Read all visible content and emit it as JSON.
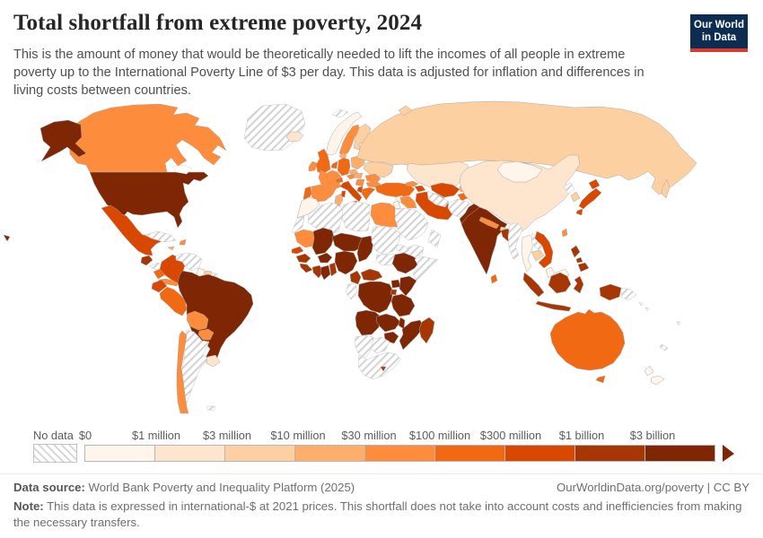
{
  "header": {
    "title": "Total shortfall from extreme poverty, 2024",
    "subtitle": "This is the amount of money that would be theoretically needed to lift the incomes of all people in extreme poverty up to the International Poverty Line of $3 per day. This data is adjusted for inflation and differences in living costs between countries.",
    "logo_line1": "Our World",
    "logo_line2": "in Data",
    "logo_bg": "#0d2c51",
    "logo_accent": "#dd392d"
  },
  "legend": {
    "no_data_label": "No data",
    "tick_labels": [
      "$0",
      "$1 million",
      "$3 million",
      "$10 million",
      "$30 million",
      "$100 million",
      "$300 million",
      "$1 billion",
      "$3 billion"
    ]
  },
  "footer": {
    "source_label": "Data source:",
    "source_text": " World Bank Poverty and Inequality Platform (2025)",
    "link_text": "OurWorldinData.org/poverty | CC BY",
    "note_label": "Note:",
    "note_text": " This data is expressed in international-$ at 2021 prices. This shortfall does not take into account costs and inefficiencies from making the necessary transfers."
  },
  "chart_data": {
    "type": "choropleth-map",
    "title": "Total shortfall from extreme poverty, 2024",
    "unit": "international-$ at 2021 prices",
    "bins": {
      "b1": {
        "range": "$0 – $1 million",
        "color": "#fff5eb"
      },
      "b2": {
        "range": "$1 – $3 million",
        "color": "#fee6ce"
      },
      "b3": {
        "range": "$3 – $10 million",
        "color": "#fdd0a2"
      },
      "b4": {
        "range": "$10 – $30 million",
        "color": "#fdae6b"
      },
      "b5": {
        "range": "$30 – $100 million",
        "color": "#fd8d3c"
      },
      "b6": {
        "range": "$100 – $300 million",
        "color": "#f16913"
      },
      "b7": {
        "range": "$300 million – $1 billion",
        "color": "#d94801"
      },
      "b8": {
        "range": "$1 – $3 billion",
        "color": "#a63603"
      },
      "b9": {
        "range": "$3 billion +",
        "color": "#7f2704"
      },
      "no_data": {
        "range": "No data",
        "color": "hatch"
      }
    },
    "countries": [
      {
        "id": "greenland",
        "name": "Greenland",
        "bin": "no_data"
      },
      {
        "id": "iceland",
        "name": "Iceland",
        "bin": "b2"
      },
      {
        "id": "canada",
        "name": "Canada",
        "bin": "b5"
      },
      {
        "id": "alaska",
        "name": "United States (Alaska)",
        "bin": "b9"
      },
      {
        "id": "usa",
        "name": "United States",
        "bin": "b9"
      },
      {
        "id": "hawaii",
        "name": "United States (Hawaii)",
        "bin": "b9"
      },
      {
        "id": "mexico",
        "name": "Mexico",
        "bin": "b7"
      },
      {
        "id": "guatemala",
        "name": "Guatemala",
        "bin": "b8"
      },
      {
        "id": "honduras",
        "name": "Honduras",
        "bin": "no_data"
      },
      {
        "id": "nicaragua",
        "name": "Nicaragua",
        "bin": "b6"
      },
      {
        "id": "costapanama",
        "name": "Costa Rica / Panama",
        "bin": "b5"
      },
      {
        "id": "cuba",
        "name": "Cuba",
        "bin": "no_data"
      },
      {
        "id": "haiti",
        "name": "Haiti",
        "bin": "b5"
      },
      {
        "id": "jamaica",
        "name": "Jamaica",
        "bin": "b4"
      },
      {
        "id": "trinidad",
        "name": "Trinidad and Tobago",
        "bin": "b3"
      },
      {
        "id": "colombia",
        "name": "Colombia",
        "bin": "b7"
      },
      {
        "id": "venezuela",
        "name": "Venezuela",
        "bin": "no_data"
      },
      {
        "id": "guyana",
        "name": "Guyana",
        "bin": "b1"
      },
      {
        "id": "suriname",
        "name": "Suriname",
        "bin": "b3"
      },
      {
        "id": "frguiana",
        "name": "French Guiana",
        "bin": "no_data"
      },
      {
        "id": "ecuador",
        "name": "Ecuador",
        "bin": "b7"
      },
      {
        "id": "peru",
        "name": "Peru",
        "bin": "b6"
      },
      {
        "id": "brazil",
        "name": "Brazil",
        "bin": "b9"
      },
      {
        "id": "bolivia",
        "name": "Bolivia",
        "bin": "b5"
      },
      {
        "id": "paraguay",
        "name": "Paraguay",
        "bin": "b5"
      },
      {
        "id": "uruguay",
        "name": "Uruguay",
        "bin": "b2"
      },
      {
        "id": "argentina",
        "name": "Argentina",
        "bin": "no_data"
      },
      {
        "id": "chile",
        "name": "Chile",
        "bin": "b5"
      },
      {
        "id": "falkland",
        "name": "Falkland Islands",
        "bin": "no_data"
      },
      {
        "id": "svalbard",
        "name": "Svalbard",
        "bin": "no_data"
      },
      {
        "id": "norway",
        "name": "Norway",
        "bin": "b1"
      },
      {
        "id": "sweden",
        "name": "Sweden",
        "bin": "b5"
      },
      {
        "id": "finland",
        "name": "Finland",
        "bin": "b3"
      },
      {
        "id": "denmark",
        "name": "Denmark",
        "bin": "b4"
      },
      {
        "id": "uk",
        "name": "United Kingdom",
        "bin": "b6"
      },
      {
        "id": "ireland",
        "name": "Ireland",
        "bin": "b5"
      },
      {
        "id": "portugal",
        "name": "Portugal",
        "bin": "b6"
      },
      {
        "id": "spain",
        "name": "Spain",
        "bin": "b5"
      },
      {
        "id": "france",
        "name": "France",
        "bin": "b5"
      },
      {
        "id": "benelux",
        "name": "Belgium / Netherlands",
        "bin": "b6"
      },
      {
        "id": "germany",
        "name": "Germany",
        "bin": "b6"
      },
      {
        "id": "switzerland",
        "name": "Switzerland",
        "bin": "b6"
      },
      {
        "id": "italy",
        "name": "Italy",
        "bin": "b7"
      },
      {
        "id": "austria",
        "name": "Austria",
        "bin": "b5"
      },
      {
        "id": "czech",
        "name": "Czechia",
        "bin": "b4"
      },
      {
        "id": "poland",
        "name": "Poland",
        "bin": "b4"
      },
      {
        "id": "baltics",
        "name": "Baltic states",
        "bin": "b2"
      },
      {
        "id": "belarus",
        "name": "Belarus",
        "bin": "b1"
      },
      {
        "id": "ukraine",
        "name": "Ukraine",
        "bin": "b3"
      },
      {
        "id": "romania",
        "name": "Romania",
        "bin": "b5"
      },
      {
        "id": "hungary",
        "name": "Hungary",
        "bin": "b4"
      },
      {
        "id": "serbia",
        "name": "Serbia",
        "bin": "b5"
      },
      {
        "id": "albania",
        "name": "Albania",
        "bin": "b7"
      },
      {
        "id": "greece",
        "name": "Greece",
        "bin": "b6"
      },
      {
        "id": "bulgaria",
        "name": "Bulgaria",
        "bin": "b5"
      },
      {
        "id": "turkey",
        "name": "Turkey",
        "bin": "b6"
      },
      {
        "id": "georgia",
        "name": "Georgia",
        "bin": "b5"
      },
      {
        "id": "azerbaijan",
        "name": "Azerbaijan",
        "bin": "b7"
      },
      {
        "id": "syria",
        "name": "Syria",
        "bin": "b1"
      },
      {
        "id": "israeljordan",
        "name": "Israel / Jordan",
        "bin": "b1"
      },
      {
        "id": "iraq",
        "name": "Iraq",
        "bin": "b5"
      },
      {
        "id": "iran",
        "name": "Iran",
        "bin": "b7"
      },
      {
        "id": "saudi",
        "name": "Saudi Arabia",
        "bin": "no_data"
      },
      {
        "id": "yemen",
        "name": "Yemen",
        "bin": "no_data"
      },
      {
        "id": "oman",
        "name": "Oman",
        "bin": "no_data"
      },
      {
        "id": "kazakhstan",
        "name": "Kazakhstan",
        "bin": "b2"
      },
      {
        "id": "uzbekistan",
        "name": "Uzbekistan",
        "bin": "b7"
      },
      {
        "id": "turkmenistan",
        "name": "Turkmenistan",
        "bin": "no_data"
      },
      {
        "id": "kyrgyzstan",
        "name": "Kyrgyzstan",
        "bin": "b4"
      },
      {
        "id": "tajikistan",
        "name": "Tajikistan",
        "bin": "b6"
      },
      {
        "id": "afghanistan",
        "name": "Afghanistan",
        "bin": "no_data"
      },
      {
        "id": "pakistan",
        "name": "Pakistan",
        "bin": "b9"
      },
      {
        "id": "india",
        "name": "India",
        "bin": "b9"
      },
      {
        "id": "nepal",
        "name": "Nepal",
        "bin": "b5"
      },
      {
        "id": "bhutan",
        "name": "Bhutan",
        "bin": "b3"
      },
      {
        "id": "bangladesh",
        "name": "Bangladesh",
        "bin": "b8"
      },
      {
        "id": "srilanka",
        "name": "Sri Lanka",
        "bin": "b6"
      },
      {
        "id": "myanmar",
        "name": "Myanmar",
        "bin": "no_data"
      },
      {
        "id": "thailand",
        "name": "Thailand",
        "bin": "b1"
      },
      {
        "id": "laos",
        "name": "Laos",
        "bin": "no_data"
      },
      {
        "id": "cambodia",
        "name": "Cambodia",
        "bin": "b3"
      },
      {
        "id": "vietnam",
        "name": "Vietnam",
        "bin": "b7"
      },
      {
        "id": "malaysia",
        "name": "Malaysia",
        "bin": "b1"
      },
      {
        "id": "malaysiaborneo",
        "name": "Malaysia (Borneo)",
        "bin": "b1"
      },
      {
        "id": "china",
        "name": "China",
        "bin": "b2"
      },
      {
        "id": "mongolia",
        "name": "Mongolia",
        "bin": "b1"
      },
      {
        "id": "russia",
        "name": "Russia",
        "bin": "b3"
      },
      {
        "id": "sakhalin",
        "name": "Russia (Sakhalin)",
        "bin": "b3"
      },
      {
        "id": "novaya",
        "name": "Russia (Novaya Zemlya)",
        "bin": "b3"
      },
      {
        "id": "northkorea",
        "name": "North Korea",
        "bin": "no_data"
      },
      {
        "id": "southkorea",
        "name": "South Korea",
        "bin": "b3"
      },
      {
        "id": "japan",
        "name": "Japan",
        "bin": "b7"
      },
      {
        "id": "taiwan",
        "name": "Taiwan",
        "bin": "b5"
      },
      {
        "id": "philippines",
        "name": "Philippines",
        "bin": "b8"
      },
      {
        "id": "indonesia",
        "name": "Indonesia",
        "bin": "b8"
      },
      {
        "id": "png",
        "name": "Papua New Guinea",
        "bin": "no_data"
      },
      {
        "id": "solomon",
        "name": "Solomon Islands",
        "bin": "no_data"
      },
      {
        "id": "fiji",
        "name": "Fiji",
        "bin": "no_data"
      },
      {
        "id": "newcaledonia",
        "name": "New Caledonia",
        "bin": "no_data"
      },
      {
        "id": "australia",
        "name": "Australia",
        "bin": "b6"
      },
      {
        "id": "tasmania",
        "name": "Australia (Tasmania)",
        "bin": "b6"
      },
      {
        "id": "newzealand",
        "name": "New Zealand",
        "bin": "b1"
      },
      {
        "id": "morocco",
        "name": "Morocco",
        "bin": "b1"
      },
      {
        "id": "wsahara",
        "name": "Western Sahara",
        "bin": "no_data"
      },
      {
        "id": "algeria",
        "name": "Algeria",
        "bin": "no_data"
      },
      {
        "id": "tunisia",
        "name": "Tunisia",
        "bin": "b4"
      },
      {
        "id": "libya",
        "name": "Libya",
        "bin": "no_data"
      },
      {
        "id": "egypt",
        "name": "Egypt",
        "bin": "b5"
      },
      {
        "id": "mauritania",
        "name": "Mauritania",
        "bin": "b5"
      },
      {
        "id": "mali",
        "name": "Mali",
        "bin": "b9"
      },
      {
        "id": "senegal",
        "name": "Senegal",
        "bin": "b7"
      },
      {
        "id": "guinea",
        "name": "Guinea",
        "bin": "b8"
      },
      {
        "id": "sierraliberia",
        "name": "Sierra Leone / Liberia",
        "bin": "b8"
      },
      {
        "id": "ivorycoast",
        "name": "Cote d'Ivoire",
        "bin": "b8"
      },
      {
        "id": "ghana",
        "name": "Ghana",
        "bin": "b9"
      },
      {
        "id": "togobenin",
        "name": "Togo / Benin",
        "bin": "b8"
      },
      {
        "id": "burkina",
        "name": "Burkina Faso",
        "bin": "b9"
      },
      {
        "id": "niger",
        "name": "Niger",
        "bin": "b9"
      },
      {
        "id": "nigeria",
        "name": "Nigeria",
        "bin": "b9"
      },
      {
        "id": "chad",
        "name": "Chad",
        "bin": "b9"
      },
      {
        "id": "sudan",
        "name": "Sudan",
        "bin": "no_data"
      },
      {
        "id": "southsudan",
        "name": "South Sudan",
        "bin": "no_data"
      },
      {
        "id": "eritrea",
        "name": "Eritrea",
        "bin": "no_data"
      },
      {
        "id": "ethiopia",
        "name": "Ethiopia",
        "bin": "b9"
      },
      {
        "id": "somalia",
        "name": "Somalia",
        "bin": "no_data"
      },
      {
        "id": "cameroon",
        "name": "Cameroon",
        "bin": "b8"
      },
      {
        "id": "car",
        "name": "Central African Republic",
        "bin": "b8"
      },
      {
        "id": "congogabon",
        "name": "Congo / Gabon",
        "bin": "no_data"
      },
      {
        "id": "drc",
        "name": "Democratic Republic of Congo",
        "bin": "b9"
      },
      {
        "id": "uganda",
        "name": "Uganda",
        "bin": "b9"
      },
      {
        "id": "kenya",
        "name": "Kenya",
        "bin": "b9"
      },
      {
        "id": "rwandaburundi",
        "name": "Rwanda / Burundi",
        "bin": "b8"
      },
      {
        "id": "tanzania",
        "name": "Tanzania",
        "bin": "b9"
      },
      {
        "id": "angola",
        "name": "Angola",
        "bin": "b9"
      },
      {
        "id": "zambia",
        "name": "Zambia",
        "bin": "b9"
      },
      {
        "id": "malawi",
        "name": "Malawi",
        "bin": "b9"
      },
      {
        "id": "mozambique",
        "name": "Mozambique",
        "bin": "b9"
      },
      {
        "id": "zimbabwe",
        "name": "Zimbabwe",
        "bin": "b9"
      },
      {
        "id": "madagascar",
        "name": "Madagascar",
        "bin": "b8"
      },
      {
        "id": "namibia",
        "name": "Namibia",
        "bin": "no_data"
      },
      {
        "id": "botswana",
        "name": "Botswana",
        "bin": "no_data"
      },
      {
        "id": "southafrica",
        "name": "South Africa",
        "bin": "no_data"
      },
      {
        "id": "lesotho",
        "name": "Lesotho",
        "bin": "b8"
      }
    ]
  }
}
